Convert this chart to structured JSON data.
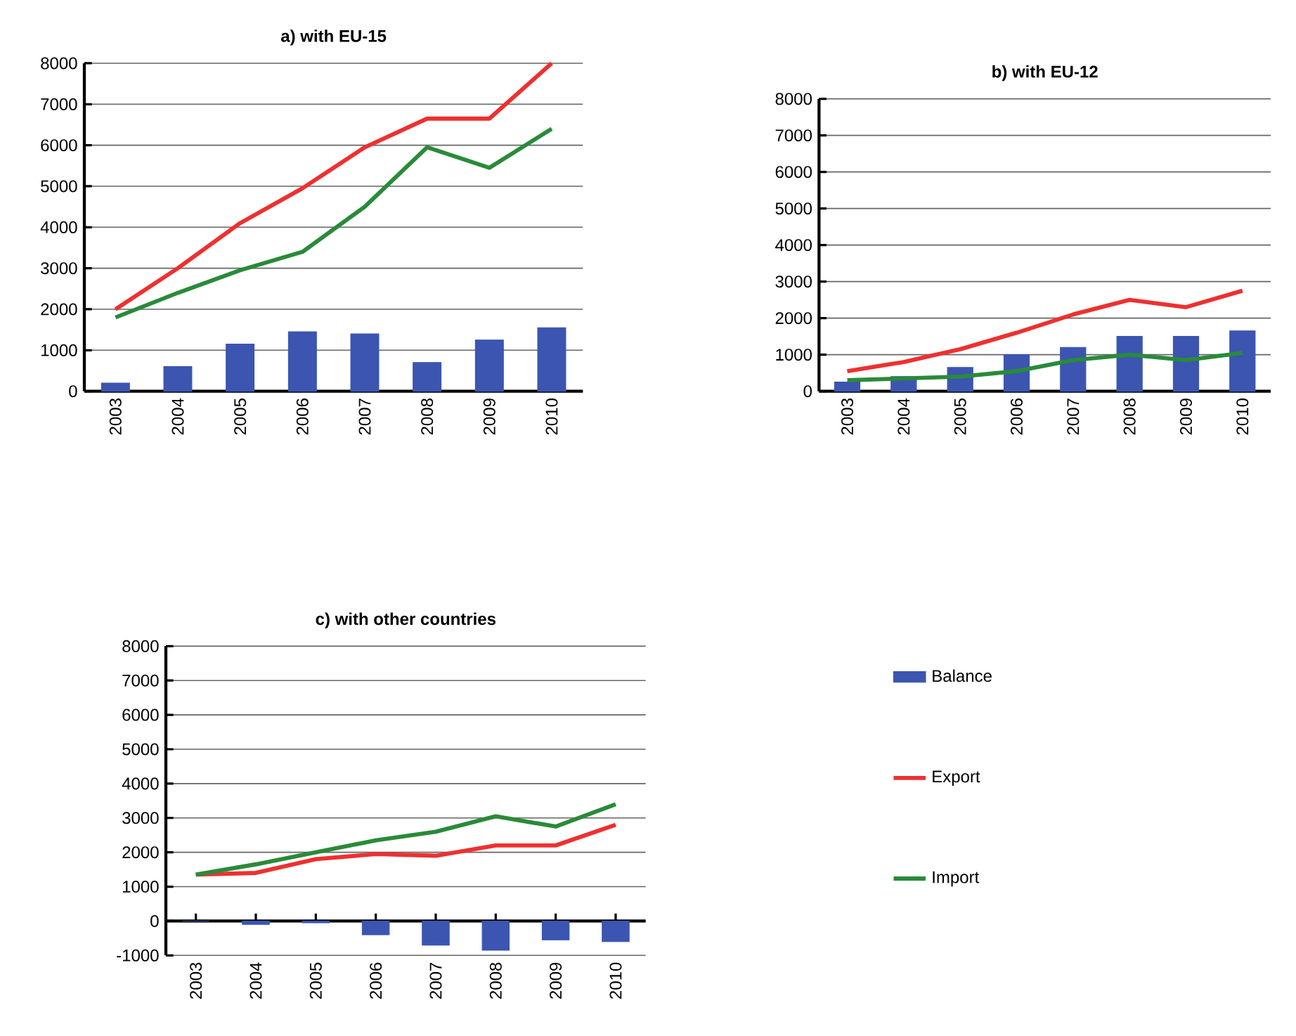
{
  "chart_data": [
    {
      "type": "line",
      "title": "a) with EU-15",
      "categories": [
        "2003",
        "2004",
        "2005",
        "2006",
        "2007",
        "2008",
        "2009",
        "2010"
      ],
      "ylim": [
        0,
        8000
      ],
      "yticks": [
        0,
        1000,
        2000,
        3000,
        4000,
        5000,
        6000,
        7000,
        8000
      ],
      "grid": "y",
      "series": [
        {
          "type": "bar",
          "color": "#3b55b0",
          "values": [
            200,
            600,
            1150,
            1450,
            1400,
            700,
            1250,
            1550
          ]
        },
        {
          "color": "#ee3030",
          "values": [
            2000,
            3000,
            4100,
            4950,
            5950,
            6650,
            6650,
            8000
          ]
        },
        {
          "color": "#2a8a3a",
          "values": [
            1800,
            2400,
            2950,
            3400,
            4500,
            5950,
            5450,
            6400
          ]
        }
      ]
    },
    {
      "type": "line",
      "title": "b) with EU-12",
      "categories": [
        "2003",
        "2004",
        "2005",
        "2006",
        "2007",
        "2008",
        "2009",
        "2010"
      ],
      "ylim": [
        0,
        8000
      ],
      "yticks": [
        0,
        1000,
        2000,
        3000,
        4000,
        5000,
        6000,
        7000,
        8000
      ],
      "grid": "y",
      "series": [
        {
          "type": "bar",
          "color": "#3b55b0",
          "values": [
            250,
            400,
            650,
            1000,
            1200,
            1500,
            1500,
            1650
          ]
        },
        {
          "color": "#ee3030",
          "values": [
            550,
            800,
            1150,
            1600,
            2100,
            2500,
            2300,
            2750
          ]
        },
        {
          "color": "#2a8a3a",
          "values": [
            300,
            350,
            400,
            550,
            850,
            1000,
            850,
            1050
          ]
        }
      ]
    },
    {
      "type": "line",
      "title": "c) with other countries",
      "categories": [
        "2003",
        "2004",
        "2005",
        "2006",
        "2007",
        "2008",
        "2009",
        "2010"
      ],
      "ylim": [
        -1000,
        8000
      ],
      "yticks": [
        -1000,
        0,
        1000,
        2000,
        3000,
        4000,
        5000,
        6000,
        7000,
        8000
      ],
      "grid": "y",
      "legend": "right",
      "series": [
        {
          "type": "bar",
          "name": "Balance",
          "color": "#3b55b0",
          "values": [
            0,
            -100,
            -50,
            -400,
            -700,
            -850,
            -550,
            -600
          ]
        },
        {
          "name": "Export",
          "color": "#ee3030",
          "values": [
            1350,
            1400,
            1800,
            1950,
            1900,
            2200,
            2200,
            2800
          ]
        },
        {
          "name": "Import",
          "color": "#2a8a3a",
          "values": [
            1350,
            1650,
            2000,
            2350,
            2600,
            3050,
            2750,
            3400
          ]
        }
      ]
    }
  ]
}
